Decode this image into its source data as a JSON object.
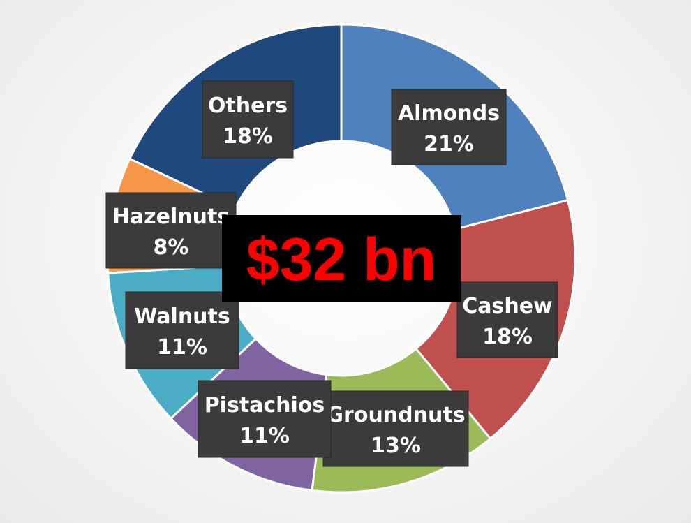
{
  "chart_data": {
    "type": "pie",
    "variant": "donut",
    "title": "",
    "center_label": "$32 bn",
    "legend": "none",
    "slices": [
      {
        "label": "Almonds",
        "value": 21,
        "value_label": "21%",
        "color": "#4f81bd"
      },
      {
        "label": "Cashew",
        "value": 18,
        "value_label": "18%",
        "color": "#c0504d"
      },
      {
        "label": "Groundnuts",
        "value": 13,
        "value_label": "13%",
        "color": "#9bbb59"
      },
      {
        "label": "Pistachios",
        "value": 11,
        "value_label": "11%",
        "color": "#8064a2"
      },
      {
        "label": "Walnuts",
        "value": 11,
        "value_label": "11%",
        "color": "#4bacc6"
      },
      {
        "label": "Hazelnuts",
        "value": 8,
        "value_label": "8%",
        "color": "#f79646"
      },
      {
        "label": "Others",
        "value": 18,
        "value_label": "18%",
        "color": "#1f497d"
      }
    ]
  }
}
